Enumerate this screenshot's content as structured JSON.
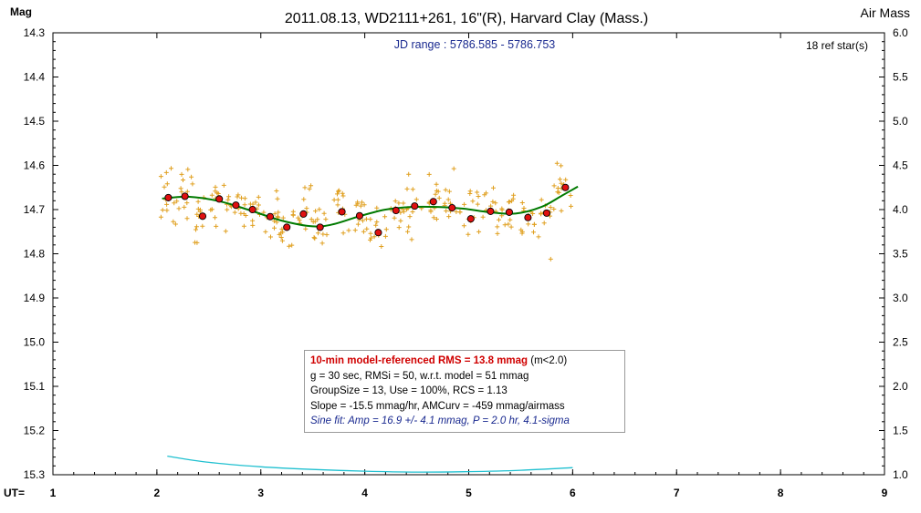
{
  "header": {
    "title": "2011.08.13, WD2111+261, 16\"(R), Harvard Clay (Mass.)",
    "left_axis_title": "Mag",
    "right_axis_title": "Air Mass",
    "jd_range": "JD range : 5786.585 - 5786.753",
    "ref_stars": "18 ref star(s)",
    "x_prefix": "UT="
  },
  "stats": {
    "line1_main": "10-min model-referenced RMS = 13.8 mmag",
    "line1_suffix": " (m<2.0)",
    "line2": "g = 30 sec, RMSi = 50, w.r.t. model = 51 mmag",
    "line3": "GroupSize = 13, Use = 100%, RCS = 1.13",
    "line4": "Slope = -15.5 mmag/hr, AMCurv = -459 mmag/airmass",
    "line5": "Sine fit: Amp = 16.9 +/- 4.1 mmag, P = 2.0 hr, 4.1-sigma"
  },
  "colors": {
    "raw_points": "#e0a020",
    "binned_points": "#e01010",
    "model_curve": "#007a00",
    "airmass_curve": "#20c0d0",
    "frame": "#000000",
    "sine_text": "#1a2a90",
    "rms_text": "#d00000"
  },
  "chart_data": {
    "type": "scatter",
    "x_axis": {
      "label": "UT",
      "range": [
        1,
        9
      ],
      "ticks": [
        "1",
        "2",
        "3",
        "4",
        "5",
        "6",
        "7",
        "8",
        "9"
      ]
    },
    "y_axis_left": {
      "label": "Mag",
      "range": [
        14.3,
        15.3
      ],
      "inverted": true,
      "ticks": [
        "14.3",
        "14.4",
        "14.5",
        "14.6",
        "14.7",
        "14.8",
        "14.9",
        "15.0",
        "15.1",
        "15.2",
        "15.3"
      ]
    },
    "y_axis_right": {
      "label": "Air Mass",
      "range": [
        1.0,
        6.0
      ],
      "ticks": [
        "6.0",
        "5.5",
        "5.0",
        "4.5",
        "4.0",
        "3.5",
        "3.0",
        "2.5",
        "2.0",
        "1.5",
        "1.0"
      ]
    },
    "binned_means": {
      "x": [
        2.11,
        2.27,
        2.44,
        2.6,
        2.76,
        2.92,
        3.09,
        3.25,
        3.41,
        3.57,
        3.78,
        3.95,
        4.13,
        4.3,
        4.48,
        4.66,
        4.84,
        5.02,
        5.21,
        5.39,
        5.57,
        5.75,
        5.93
      ],
      "y": [
        14.673,
        14.67,
        14.715,
        14.676,
        14.69,
        14.7,
        14.716,
        14.74,
        14.71,
        14.74,
        14.705,
        14.714,
        14.752,
        14.702,
        14.692,
        14.682,
        14.696,
        14.721,
        14.704,
        14.706,
        14.718,
        14.708,
        14.65
      ]
    },
    "model_fit": {
      "x": [
        2.05,
        2.3,
        2.6,
        2.9,
        3.2,
        3.5,
        3.7,
        3.95,
        4.2,
        4.45,
        4.7,
        4.95,
        5.2,
        5.45,
        5.7,
        5.9,
        6.05
      ],
      "y": [
        14.675,
        14.671,
        14.681,
        14.702,
        14.725,
        14.738,
        14.733,
        14.715,
        14.7,
        14.694,
        14.694,
        14.698,
        14.706,
        14.709,
        14.694,
        14.668,
        14.648
      ]
    },
    "airmass": {
      "x": [
        2.1,
        2.5,
        3.0,
        3.5,
        4.0,
        4.5,
        5.0,
        5.5,
        6.0
      ],
      "y": [
        1.21,
        1.14,
        1.09,
        1.06,
        1.04,
        1.03,
        1.035,
        1.05,
        1.08
      ]
    },
    "raw_scatter_sd_mag": 0.045,
    "raw_samples_per_bin": 13
  }
}
